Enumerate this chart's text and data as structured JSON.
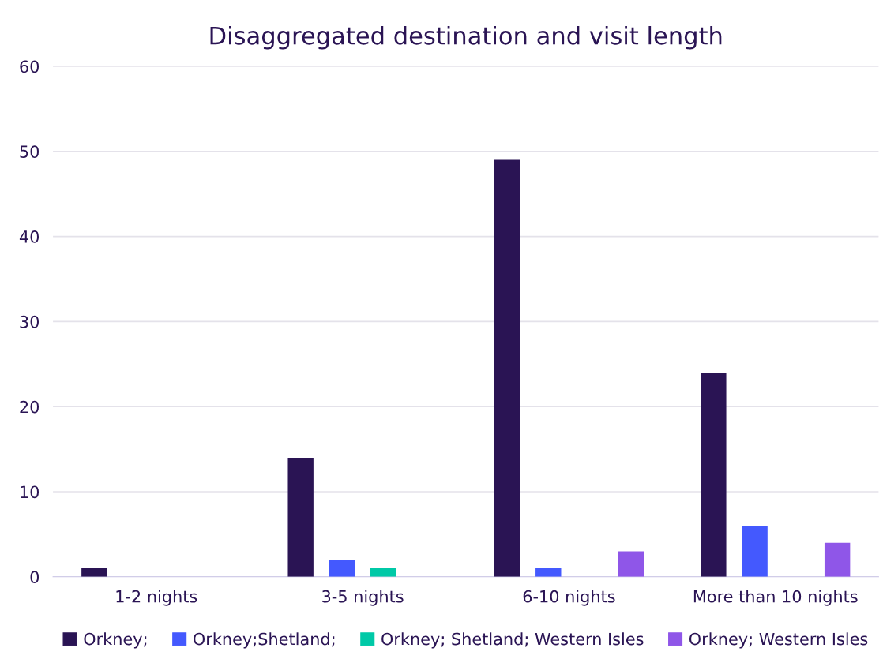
{
  "chart_data": {
    "type": "bar",
    "title": "Disaggregated destination and visit length",
    "categories": [
      "1-2 nights",
      "3-5 nights",
      "6-10 nights",
      "More than 10 nights"
    ],
    "series": [
      {
        "name": "Orkney;",
        "color": "#2a1454",
        "values": [
          1,
          14,
          49,
          24
        ]
      },
      {
        "name": "Orkney;Shetland;",
        "color": "#4459fe",
        "values": [
          0,
          2,
          1,
          6
        ]
      },
      {
        "name": "Orkney; Shetland; Western Isles",
        "color": "#00c9a7",
        "values": [
          0,
          1,
          0,
          0
        ]
      },
      {
        "name": "Orkney; Western Isles",
        "color": "#8f56e8",
        "values": [
          0,
          0,
          3,
          4
        ]
      }
    ],
    "ylim": [
      0,
      60
    ],
    "yticks": [
      0,
      10,
      20,
      30,
      40,
      50,
      60
    ],
    "grid": "y",
    "legend": "bottom"
  }
}
